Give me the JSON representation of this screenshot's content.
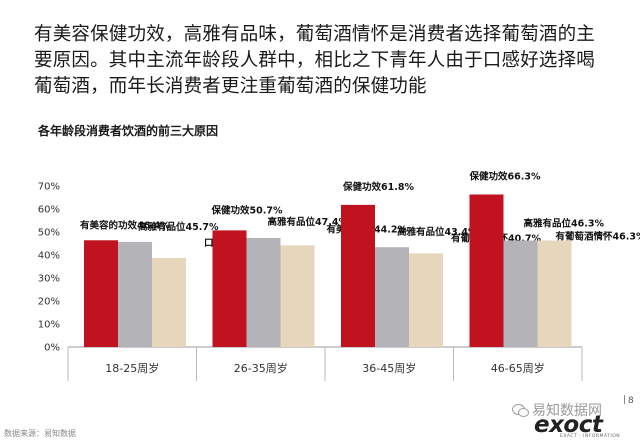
{
  "headline": "有美容保健功效，高雅有品味，葡萄酒情怀是消费者选择葡萄酒的主要原因。其中主流年龄段人群中，相比之下青年人由于口感好选择喝葡萄酒，而年长消费者更注重葡萄酒的保健功能",
  "chart_data": {
    "type": "bar",
    "title": "各年龄段消费者饮酒的前三大原因",
    "xlabel": "",
    "ylabel": "",
    "ylim": [
      0,
      70
    ],
    "yticks": [
      "0%",
      "10%",
      "20%",
      "30%",
      "40%",
      "50%",
      "60%",
      "70%"
    ],
    "grid": false,
    "legend": "none",
    "groups": [
      {
        "category": "18-25周岁",
        "bars": [
          {
            "label": "有美容的功效46.4%",
            "value": 46.4,
            "color": "#c0121f"
          },
          {
            "label": "高雅有品位45.7%",
            "value": 45.7,
            "color": "#b3b3b8"
          },
          {
            "label": "口感好38.7%",
            "value": 38.7,
            "color": "#e6d6bc"
          }
        ]
      },
      {
        "category": "26-35周岁",
        "bars": [
          {
            "label": "保健功效50.7%",
            "value": 50.7,
            "color": "#c0121f"
          },
          {
            "label": "高雅有品位47.4%",
            "value": 47.4,
            "color": "#b3b3b8"
          },
          {
            "label": "有美容功效44.2%",
            "value": 44.2,
            "color": "#e6d6bc"
          }
        ]
      },
      {
        "category": "36-45周岁",
        "bars": [
          {
            "label": "保健功效61.8%",
            "value": 61.8,
            "color": "#c0121f"
          },
          {
            "label": "高雅有品位43.4%",
            "value": 43.4,
            "color": "#b3b3b8"
          },
          {
            "label": "有葡萄酒情怀40.7%",
            "value": 40.7,
            "color": "#e6d6bc"
          }
        ]
      },
      {
        "category": "46-65周岁",
        "bars": [
          {
            "label": "保健功效66.3%",
            "value": 66.3,
            "color": "#c0121f"
          },
          {
            "label": "高雅有品位46.3%",
            "value": 46.3,
            "color": "#b3b3b8"
          },
          {
            "label": "有葡萄酒情怀46.3%",
            "value": 46.3,
            "color": "#e6d6bc"
          }
        ]
      }
    ]
  },
  "footer": {
    "source": "数据来源：易知数据",
    "page_number": "8",
    "watermark": "易知数据网",
    "logo": "exoct",
    "logo_tagline": "EXACT · INFORMATION"
  }
}
